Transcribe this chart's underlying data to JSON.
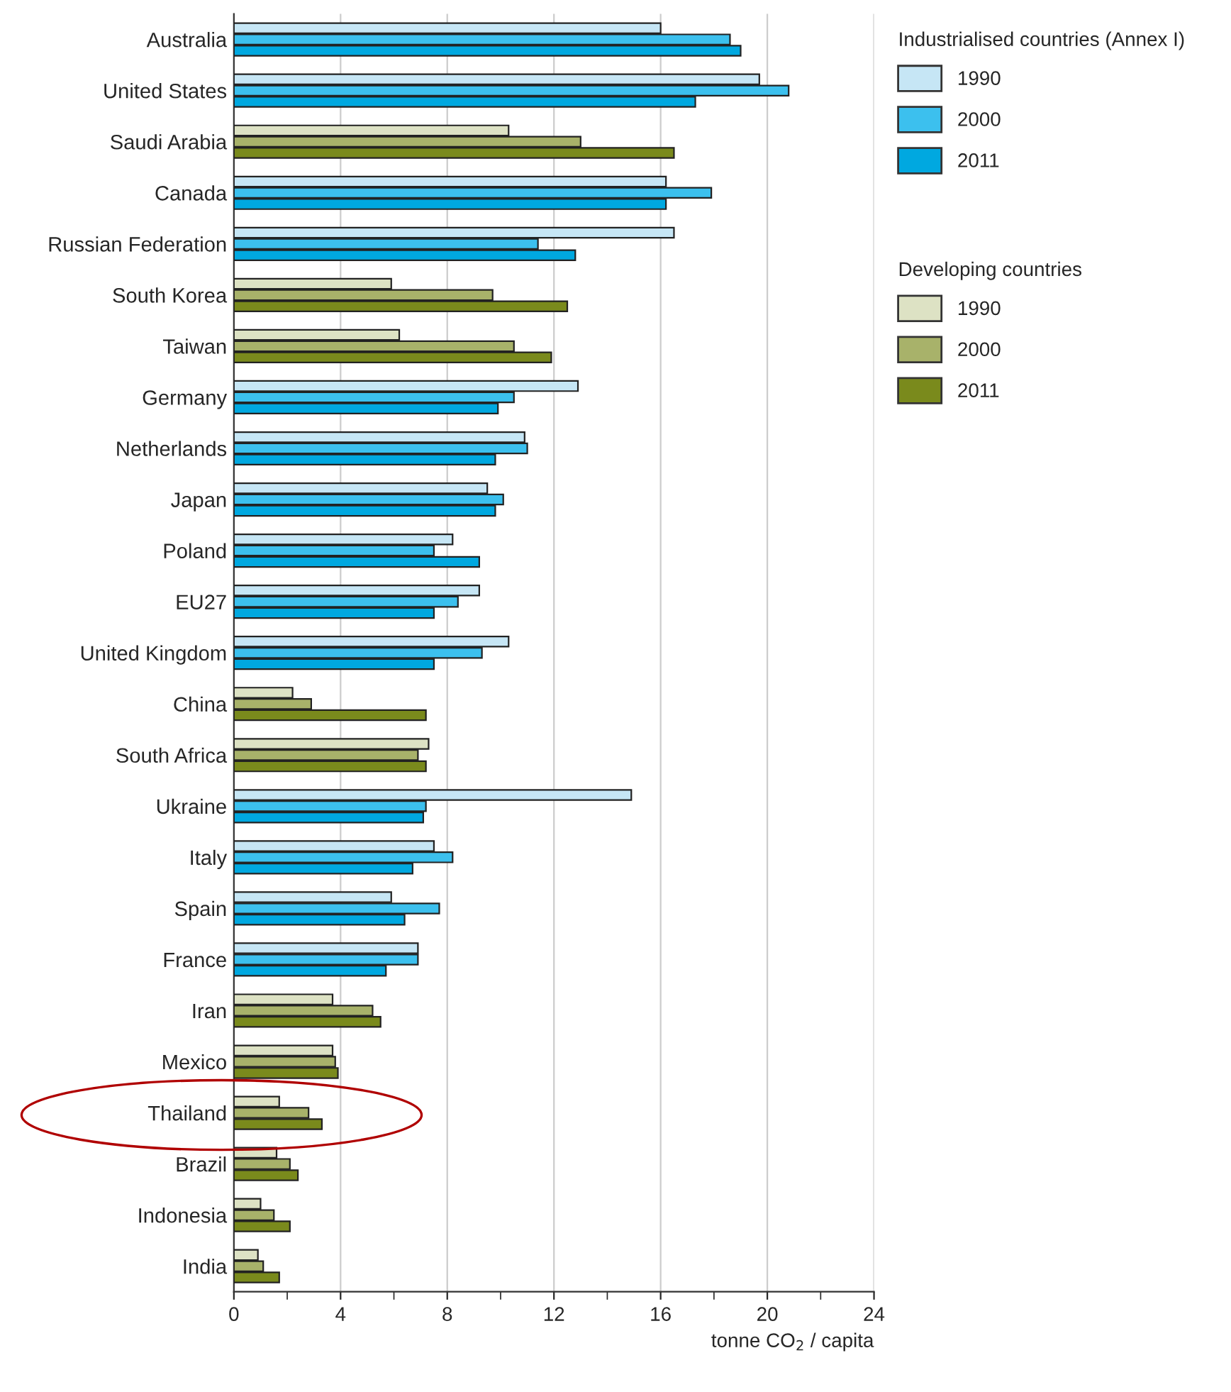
{
  "chart_data": {
    "type": "bar",
    "orientation": "horizontal",
    "categories": [
      "Australia",
      "United States",
      "Saudi Arabia",
      "Canada",
      "Russian Federation",
      "South Korea",
      "Taiwan",
      "Germany",
      "Netherlands",
      "Japan",
      "Poland",
      "EU27",
      "United Kingdom",
      "China",
      "South Africa",
      "Ukraine",
      "Italy",
      "Spain",
      "France",
      "Iran",
      "Mexico",
      "Thailand",
      "Brazil",
      "Indonesia",
      "India"
    ],
    "series": [
      {
        "name": "1990",
        "color": "#c6e6f5",
        "values": [
          16.0,
          19.7,
          null,
          16.2,
          16.5,
          null,
          null,
          12.9,
          10.9,
          9.5,
          8.2,
          9.2,
          10.3,
          null,
          null,
          14.9,
          7.5,
          5.9,
          6.9,
          null,
          null,
          null,
          null,
          null,
          null
        ]
      },
      {
        "name": "2000",
        "color": "#3cc0ee",
        "values": [
          18.6,
          20.8,
          null,
          17.9,
          11.4,
          null,
          null,
          10.5,
          11.0,
          10.1,
          7.5,
          8.4,
          9.3,
          null,
          null,
          7.2,
          8.2,
          7.7,
          6.9,
          null,
          null,
          null,
          null,
          null,
          null
        ]
      },
      {
        "name": "2011",
        "color": "#00a8e0",
        "values": [
          19.0,
          17.3,
          null,
          16.2,
          12.8,
          null,
          null,
          9.9,
          9.8,
          9.8,
          9.2,
          7.5,
          7.5,
          null,
          null,
          7.1,
          6.7,
          6.4,
          5.7,
          null,
          null,
          null,
          null,
          null,
          null
        ]
      },
      {
        "name": "1990",
        "color": "#dde2c4",
        "values": [
          null,
          null,
          10.3,
          null,
          null,
          5.9,
          6.2,
          null,
          null,
          null,
          null,
          null,
          null,
          2.2,
          7.3,
          null,
          null,
          null,
          null,
          3.7,
          3.7,
          1.7,
          1.6,
          1.0,
          0.9
        ]
      },
      {
        "name": "2000",
        "color": "#a8b26a",
        "values": [
          null,
          null,
          13.0,
          null,
          null,
          9.7,
          10.5,
          null,
          null,
          null,
          null,
          null,
          null,
          2.9,
          6.9,
          null,
          null,
          null,
          null,
          5.2,
          3.8,
          2.8,
          2.1,
          1.5,
          1.1
        ]
      },
      {
        "name": "2011",
        "color": "#7a8a1c",
        "values": [
          null,
          null,
          16.5,
          null,
          null,
          12.5,
          11.9,
          null,
          null,
          null,
          null,
          null,
          null,
          7.2,
          7.2,
          null,
          null,
          null,
          null,
          5.5,
          3.9,
          3.3,
          2.4,
          2.1,
          1.7
        ]
      }
    ],
    "xlim": [
      0,
      24
    ],
    "xticks": [
      0,
      {
        "value": 2,
        "label": null
      },
      4,
      {
        "value": 6,
        "label": null
      },
      8,
      {
        "value": 10,
        "label": null
      },
      12,
      {
        "value": 14,
        "label": null
      },
      16,
      {
        "value": 18,
        "label": null
      },
      20,
      {
        "value": 22,
        "label": null
      },
      24
    ],
    "xlabel": "tonne CO$_{2}$ / capita",
    "legend_title": "Industrialised countries (Annex I)",
    "annotations": [
      "Developing countries"
    ],
    "legend": "right",
    "grid": "x"
  }
}
